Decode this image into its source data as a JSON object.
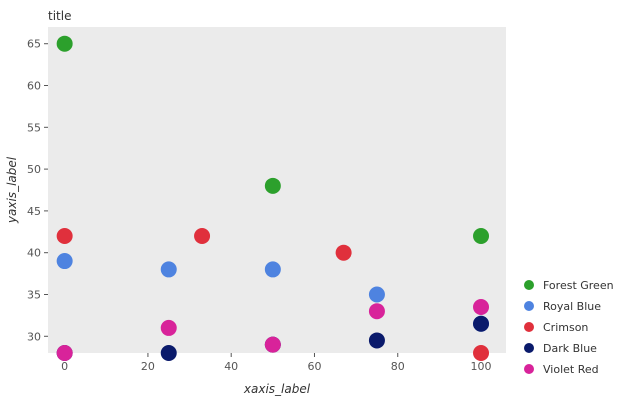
{
  "chart_data": {
    "type": "scatter",
    "title": "title",
    "xlabel": "xaxis_label",
    "ylabel": "yaxis_label",
    "xlim": [
      -4,
      106
    ],
    "ylim": [
      28,
      67
    ],
    "xticks": [
      0,
      20,
      40,
      60,
      80,
      100
    ],
    "yticks": [
      30,
      35,
      40,
      45,
      50,
      55,
      60,
      65
    ],
    "grid": false,
    "legend_position": "right",
    "series": [
      {
        "name": "Forest Green",
        "color": "#2ca02c",
        "x": [
          0,
          50,
          100
        ],
        "y": [
          65,
          48,
          42
        ]
      },
      {
        "name": "Royal Blue",
        "color": "#4e83e0",
        "x": [
          0,
          25,
          50,
          75,
          100
        ],
        "y": [
          39,
          38,
          38,
          35,
          31.5
        ]
      },
      {
        "name": "Crimson",
        "color": "#e0303c",
        "x": [
          0,
          33,
          67,
          100
        ],
        "y": [
          42,
          42,
          40,
          28
        ]
      },
      {
        "name": "Dark Blue",
        "color": "#0a1a6b",
        "x": [
          0,
          25,
          50,
          75,
          100
        ],
        "y": [
          28,
          28,
          29,
          29.5,
          31.5
        ]
      },
      {
        "name": "Violet Red",
        "color": "#d8239a",
        "x": [
          0,
          25,
          50,
          75,
          100
        ],
        "y": [
          28,
          31,
          29,
          33,
          33.5
        ]
      }
    ]
  }
}
